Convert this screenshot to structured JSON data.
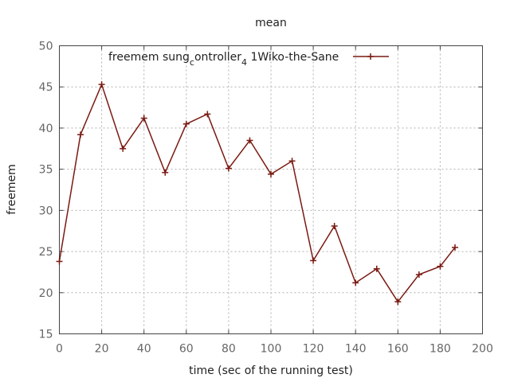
{
  "chart_data": {
    "type": "line",
    "title": "mean",
    "xlabel": "time (sec of the running test)",
    "ylabel": "freemem",
    "xlim": [
      0,
      200
    ],
    "ylim": [
      15,
      50
    ],
    "xticks": [
      0,
      20,
      40,
      60,
      80,
      100,
      120,
      140,
      160,
      180,
      200
    ],
    "yticks": [
      15,
      20,
      25,
      30,
      35,
      40,
      45,
      50
    ],
    "grid": true,
    "legend_position": "top-right",
    "legend_text": {
      "base": "freemem sung",
      "sub1": "c",
      "mid": "ontroller",
      "sub2": "4",
      "tail": " 1Wiko-the-Sane"
    },
    "series": [
      {
        "color": "#7a1a12",
        "marker": "plus",
        "x": [
          0,
          10,
          20,
          30,
          40,
          50,
          60,
          70,
          80,
          90,
          100,
          110,
          120,
          130,
          140,
          150,
          160,
          170,
          180,
          187
        ],
        "values": [
          23.8,
          39.2,
          45.3,
          37.5,
          41.2,
          34.6,
          40.5,
          41.7,
          35.1,
          38.5,
          34.4,
          36.0,
          23.9,
          28.1,
          21.2,
          22.9,
          18.9,
          22.2,
          23.2,
          25.5
        ]
      }
    ]
  }
}
